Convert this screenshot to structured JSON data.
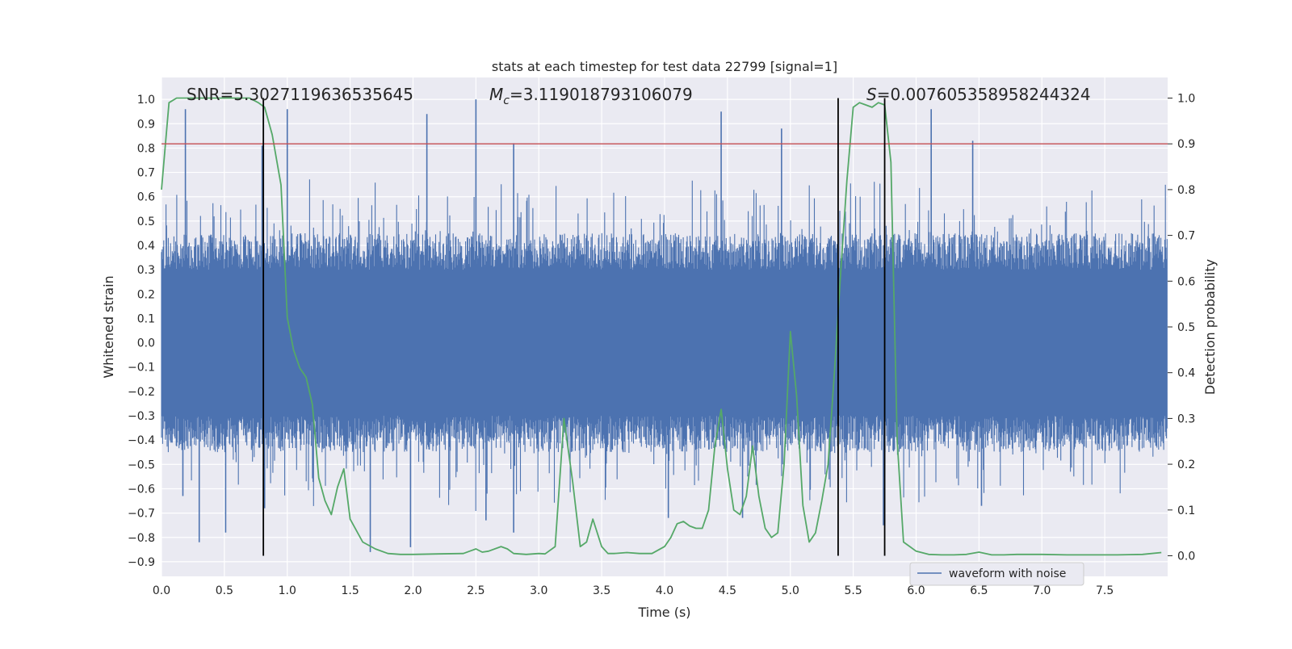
{
  "chart_data": {
    "type": "line",
    "title": "stats at each timestep for test data 22799 [signal=1]",
    "xlabel": "Time (s)",
    "ylabel": "Whitened strain",
    "y2label": "Detection probability",
    "xlim": [
      0.0,
      8.0
    ],
    "ylim": [
      -0.96,
      1.09
    ],
    "y2lim": [
      -0.045,
      1.045
    ],
    "xticks": [
      0.0,
      0.5,
      1.0,
      1.5,
      2.0,
      2.5,
      3.0,
      3.5,
      4.0,
      4.5,
      5.0,
      5.5,
      6.0,
      6.5,
      7.0,
      7.5
    ],
    "yticks": [
      1.0,
      0.9,
      0.8,
      0.7,
      0.6,
      0.5,
      0.4,
      0.3,
      0.2,
      0.1,
      0.0,
      -0.1,
      -0.2,
      -0.3,
      -0.4,
      -0.5,
      -0.6,
      -0.7,
      -0.8,
      -0.9
    ],
    "y2ticks": [
      1.0,
      0.9,
      0.8,
      0.7,
      0.6,
      0.5,
      0.4,
      0.3,
      0.2,
      0.1,
      0.0
    ],
    "xtick_labels": [
      "0.0",
      "0.5",
      "1.0",
      "1.5",
      "2.0",
      "2.5",
      "3.0",
      "3.5",
      "4.0",
      "4.5",
      "5.0",
      "5.5",
      "6.0",
      "6.5",
      "7.0",
      "7.5"
    ],
    "ytick_labels": [
      "1.0",
      "0.9",
      "0.8",
      "0.7",
      "0.6",
      "0.5",
      "0.4",
      "0.3",
      "0.2",
      "0.1",
      "0.0",
      "−0.1",
      "−0.2",
      "−0.3",
      "−0.4",
      "−0.5",
      "−0.6",
      "−0.7",
      "−0.8",
      "−0.9"
    ],
    "y2tick_labels": [
      "1.0",
      "0.9",
      "0.8",
      "0.7",
      "0.6",
      "0.5",
      "0.4",
      "0.3",
      "0.2",
      "0.1",
      "0.0"
    ],
    "grid": true,
    "legend": {
      "position": "lower-right",
      "entries": [
        {
          "label": "waveform with noise",
          "color": "#4c72b0"
        }
      ]
    },
    "annotations": {
      "snr": "SNR=5.3027119636535645",
      "mc_symbol": "M",
      "mc_sub": "c",
      "mc_value": "=3.119018793106079",
      "s_symbol": "S",
      "s_value": "=0.007605358958244324"
    },
    "threshold": {
      "axis": "y2",
      "value": 0.9,
      "color": "#c44e52"
    },
    "vlines": {
      "x": [
        0.81,
        5.38,
        5.75
      ],
      "y2_range": [
        0.0,
        1.0
      ],
      "color": "#000000"
    },
    "series": [
      {
        "name": "waveform with noise",
        "axis": "y",
        "color": "#4c72b0",
        "kind": "noise-envelope",
        "duration_s": 8.0,
        "seed": 22799,
        "envelope_typical": [
          0.3,
          0.45
        ],
        "spikes": [
          {
            "x": 0.19,
            "y": 0.96
          },
          {
            "x": 0.8,
            "y": 0.81
          },
          {
            "x": 1.0,
            "y": 0.96
          },
          {
            "x": 2.11,
            "y": 0.94
          },
          {
            "x": 2.5,
            "y": 1.0
          },
          {
            "x": 2.8,
            "y": 0.82
          },
          {
            "x": 4.45,
            "y": 0.95
          },
          {
            "x": 4.93,
            "y": 0.88
          },
          {
            "x": 6.12,
            "y": 0.96
          },
          {
            "x": 6.45,
            "y": 0.83
          },
          {
            "x": 0.3,
            "y": -0.82
          },
          {
            "x": 0.51,
            "y": -0.78
          },
          {
            "x": 1.66,
            "y": -0.86
          },
          {
            "x": 1.98,
            "y": -0.84
          },
          {
            "x": 2.58,
            "y": -0.73
          },
          {
            "x": 2.8,
            "y": -0.78
          },
          {
            "x": 4.03,
            "y": -0.72
          },
          {
            "x": 4.62,
            "y": -0.72
          },
          {
            "x": 5.74,
            "y": -0.75
          },
          {
            "x": 6.52,
            "y": -0.67
          },
          {
            "x": 0.82,
            "y": -0.68
          },
          {
            "x": 0.17,
            "y": -0.63
          }
        ]
      },
      {
        "name": "Detection probability",
        "axis": "y2",
        "color": "#55a868",
        "x": [
          0.0,
          0.06,
          0.12,
          0.2,
          0.3,
          0.45,
          0.6,
          0.7,
          0.77,
          0.82,
          0.88,
          0.95,
          1.0,
          1.05,
          1.1,
          1.15,
          1.2,
          1.25,
          1.3,
          1.35,
          1.4,
          1.45,
          1.5,
          1.6,
          1.7,
          1.8,
          1.9,
          2.0,
          2.2,
          2.4,
          2.45,
          2.5,
          2.55,
          2.6,
          2.7,
          2.75,
          2.8,
          2.9,
          3.0,
          3.05,
          3.13,
          3.2,
          3.27,
          3.33,
          3.38,
          3.43,
          3.5,
          3.55,
          3.6,
          3.7,
          3.8,
          3.9,
          4.0,
          4.05,
          4.1,
          4.15,
          4.2,
          4.25,
          4.3,
          4.35,
          4.4,
          4.45,
          4.5,
          4.55,
          4.6,
          4.65,
          4.7,
          4.75,
          4.8,
          4.85,
          4.9,
          4.95,
          5.0,
          5.05,
          5.1,
          5.15,
          5.2,
          5.25,
          5.3,
          5.35,
          5.4,
          5.45,
          5.5,
          5.55,
          5.6,
          5.65,
          5.7,
          5.75,
          5.8,
          5.85,
          5.9,
          5.95,
          6.0,
          6.1,
          6.2,
          6.3,
          6.4,
          6.5,
          6.6,
          6.7,
          6.8,
          6.9,
          7.0,
          7.2,
          7.4,
          7.6,
          7.8,
          7.95
        ],
        "values": [
          0.8,
          0.99,
          1.0,
          1.0,
          1.0,
          1.0,
          1.0,
          1.0,
          0.99,
          0.98,
          0.92,
          0.81,
          0.52,
          0.45,
          0.41,
          0.39,
          0.33,
          0.17,
          0.12,
          0.09,
          0.15,
          0.19,
          0.08,
          0.03,
          0.015,
          0.005,
          0.003,
          0.003,
          0.004,
          0.005,
          0.01,
          0.015,
          0.008,
          0.01,
          0.02,
          0.015,
          0.005,
          0.003,
          0.005,
          0.004,
          0.02,
          0.3,
          0.16,
          0.02,
          0.03,
          0.08,
          0.02,
          0.005,
          0.005,
          0.007,
          0.005,
          0.005,
          0.02,
          0.04,
          0.07,
          0.075,
          0.065,
          0.06,
          0.06,
          0.1,
          0.24,
          0.32,
          0.19,
          0.1,
          0.09,
          0.13,
          0.24,
          0.13,
          0.06,
          0.04,
          0.05,
          0.2,
          0.49,
          0.35,
          0.11,
          0.03,
          0.05,
          0.12,
          0.2,
          0.4,
          0.62,
          0.82,
          0.98,
          0.99,
          0.985,
          0.98,
          0.99,
          0.985,
          0.86,
          0.25,
          0.03,
          0.02,
          0.01,
          0.003,
          0.002,
          0.002,
          0.003,
          0.008,
          0.002,
          0.002,
          0.003,
          0.003,
          0.003,
          0.002,
          0.002,
          0.002,
          0.003,
          0.007
        ]
      }
    ]
  }
}
